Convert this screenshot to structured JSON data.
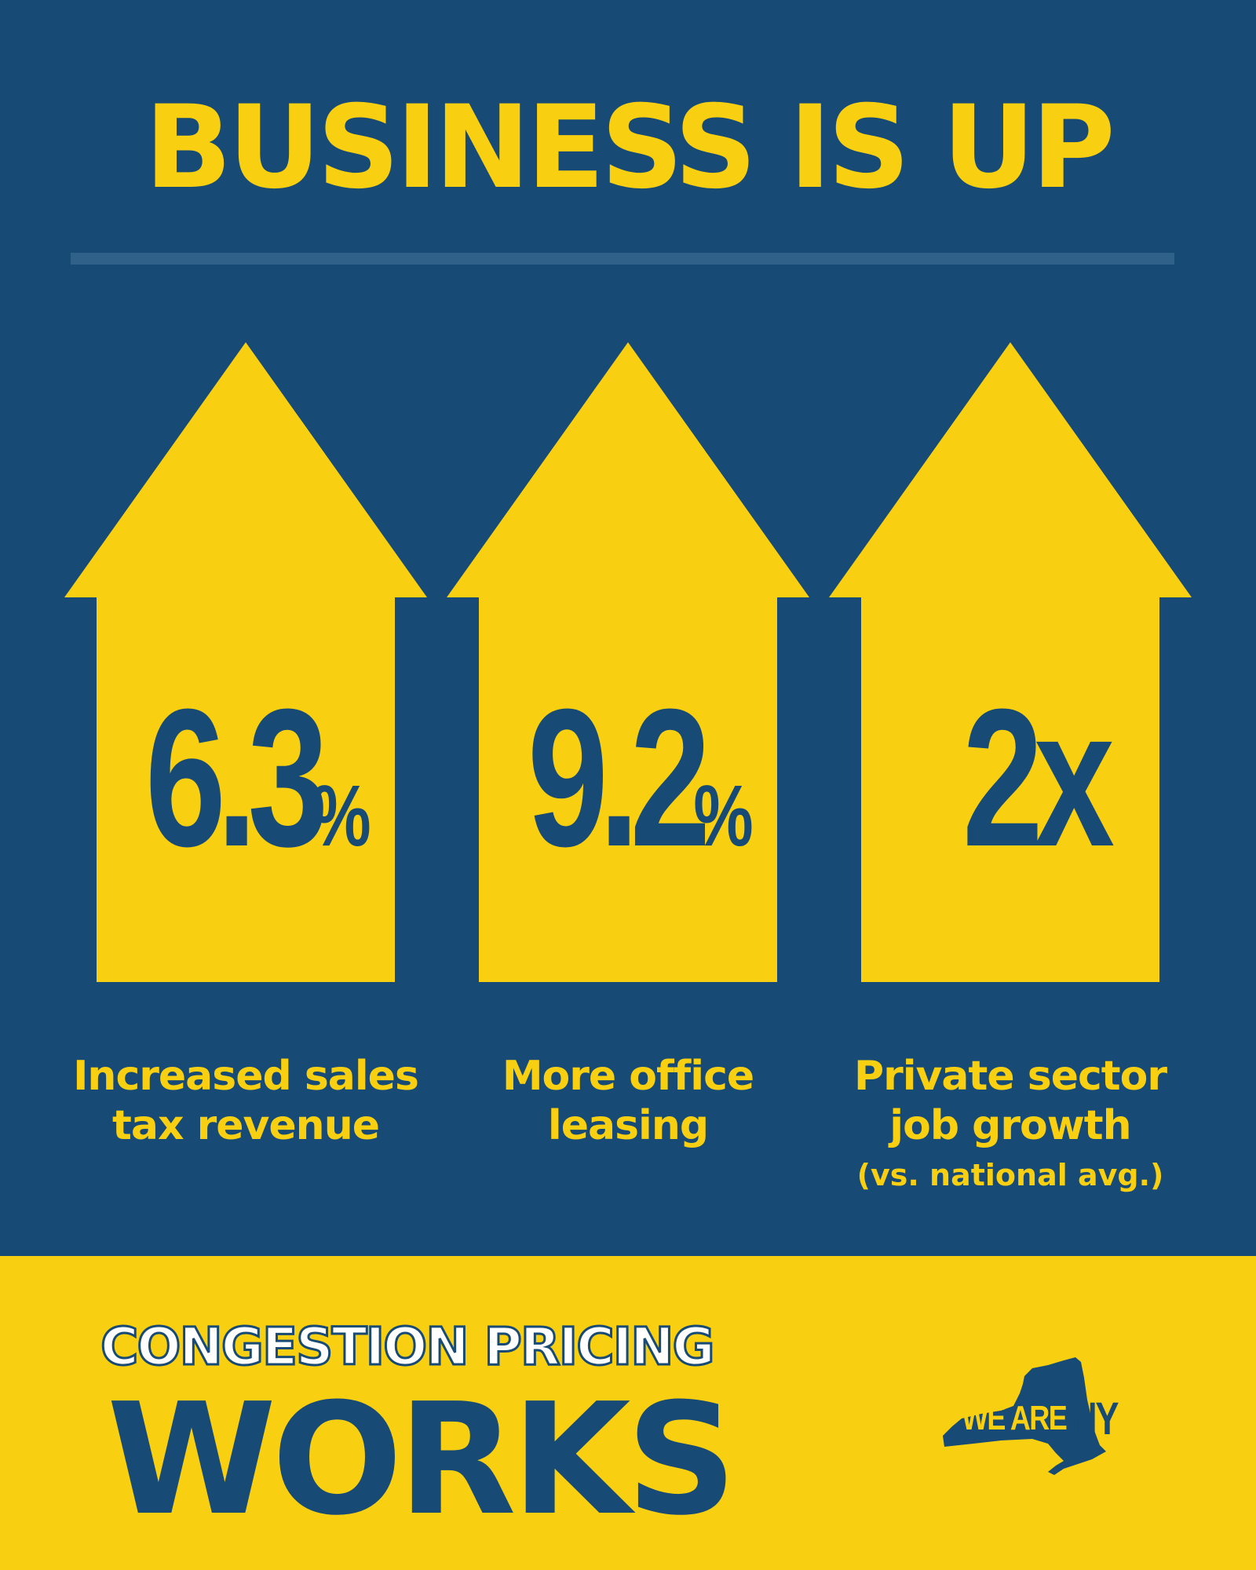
{
  "headline": "BUSINESS IS UP",
  "stats": [
    {
      "value": "6.3",
      "suffix": "%",
      "caption_line1": "Increased sales",
      "caption_line2": "tax revenue",
      "note": ""
    },
    {
      "value": "9.2",
      "suffix": "%",
      "caption_line1": "More office",
      "caption_line2": "leasing",
      "note": ""
    },
    {
      "value": "2x",
      "suffix": "",
      "caption_line1": "Private sector",
      "caption_line2": "job growth",
      "note": "(vs. national avg.)"
    }
  ],
  "footer": {
    "tagline": "CONGESTION PRICING",
    "emphasis": "WORKS"
  },
  "logo": {
    "text_we_are": "WE ARE",
    "text_ny": "NY",
    "icon": "new-york-state-map-icon"
  },
  "colors": {
    "navy": "#174a74",
    "yellow": "#f8d011",
    "divider": "#2f6189",
    "white": "#ffffff"
  }
}
